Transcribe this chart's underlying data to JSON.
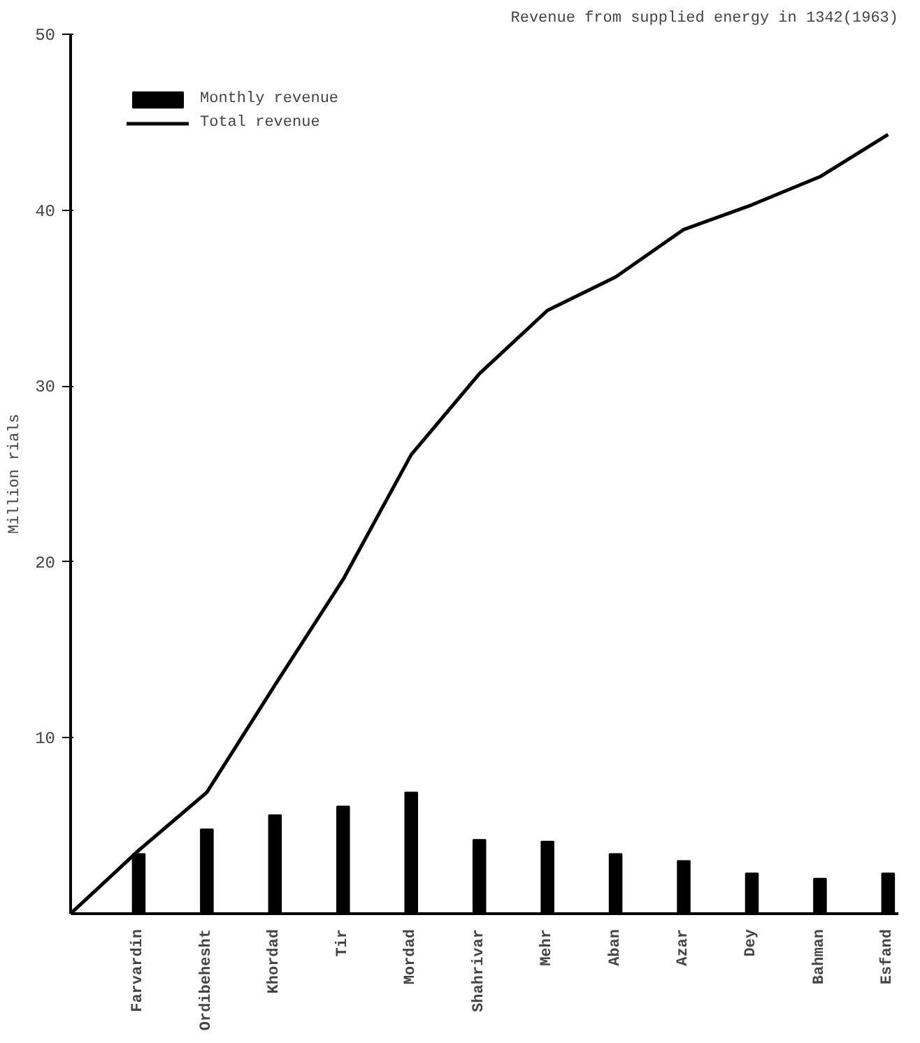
{
  "chart_data": {
    "type": "bar",
    "title": "Revenue from supplied energy in 1342(1963)",
    "ylabel": "Million rials",
    "categories": [
      null,
      "Farvardin",
      "Ordibehesht",
      "Khordad",
      "Tir",
      "Mordad",
      "Shahrivar",
      "Mehr",
      "Aban",
      "Azar",
      "Dey",
      "Bahman",
      "Esfand"
    ],
    "series": [
      {
        "name": "Monthly revenue",
        "color": "#000000",
        "values": [
          null,
          3.4,
          4.8,
          5.6,
          6.1,
          6.9,
          4.2,
          4.1,
          3.4,
          3.0,
          2.3,
          2.0,
          2.3
        ]
      },
      {
        "name": "Total revenue",
        "type": "line",
        "color": "#000000",
        "values": [
          0,
          3.6,
          6.9,
          13.0,
          19.0,
          26.1,
          30.7,
          34.3,
          36.2,
          38.9,
          40.3,
          41.9,
          44.3
        ]
      }
    ],
    "ylim": [
      0,
      50
    ],
    "yticks": [
      10,
      20,
      30,
      40,
      50
    ],
    "grid": false,
    "legend": "top left"
  }
}
